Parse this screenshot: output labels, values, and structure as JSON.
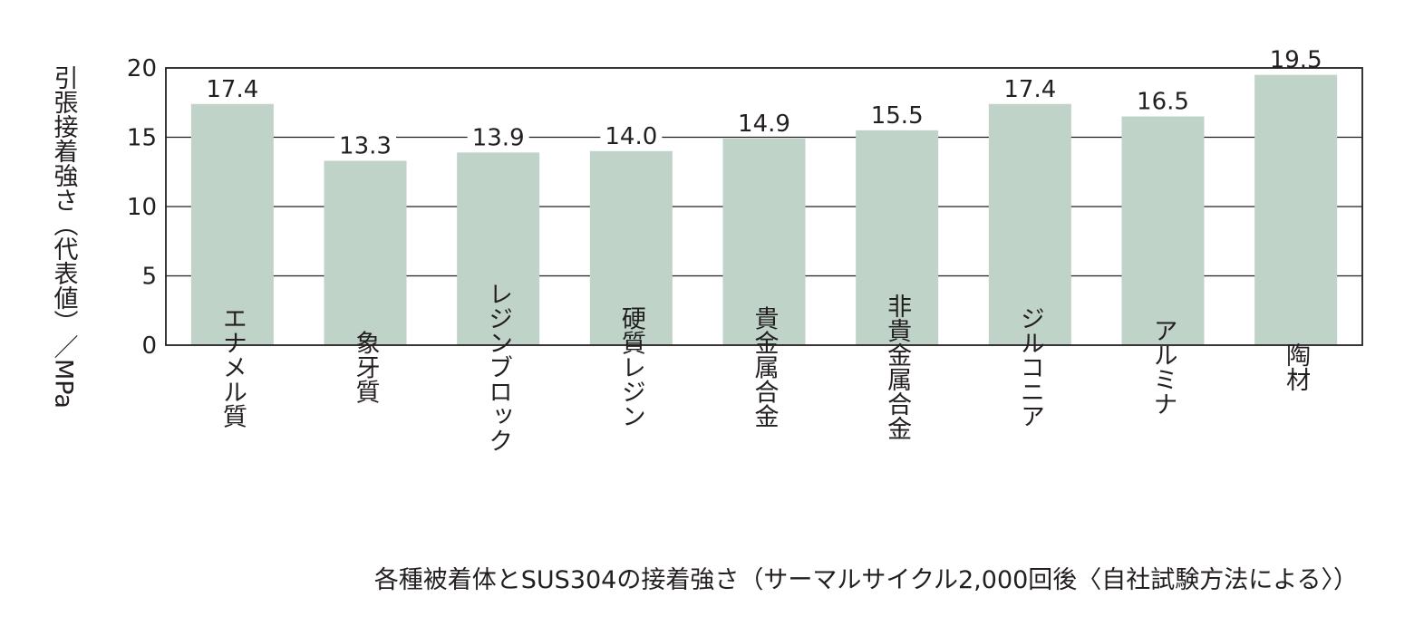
{
  "chart_data": {
    "type": "bar",
    "categories": [
      "エナメル質",
      "象牙質",
      "レジンブロック",
      "硬質レジン",
      "貴金属合金",
      "非貴金属合金",
      "ジルコニア",
      "アルミナ",
      "陶材"
    ],
    "values": [
      17.4,
      13.3,
      13.9,
      14.0,
      14.9,
      15.5,
      17.4,
      16.5,
      19.5
    ],
    "value_labels": [
      "17.4",
      "13.3",
      "13.9",
      "14.0",
      "14.9",
      "15.5",
      "17.4",
      "16.5",
      "19.5"
    ],
    "title": "",
    "xlabel": "",
    "ylabel": "引張接着強さ（代表値）／MPa",
    "ylim": [
      0,
      20
    ],
    "yticks": [
      "0",
      "5",
      "10",
      "15",
      "20"
    ],
    "grid": true,
    "bar_color": "#bfd3c9",
    "axis_color": "#231f20"
  },
  "caption": "各種被着体とSUS304の接着強さ（サーマルサイクル2,000回後〈自社試験方法による〉）"
}
